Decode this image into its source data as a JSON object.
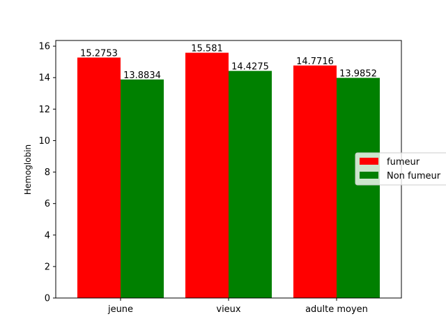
{
  "chart_data": {
    "type": "bar",
    "categories": [
      "jeune",
      "vieux",
      "adulte moyen"
    ],
    "series": [
      {
        "name": "fumeur",
        "color": "#ff0000",
        "values": [
          15.2753,
          15.581,
          14.7716
        ],
        "labels": [
          "15.2753",
          "15.581",
          "14.7716"
        ]
      },
      {
        "name": "Non fumeur",
        "color": "#008000",
        "values": [
          13.8834,
          14.4275,
          13.9852
        ],
        "labels": [
          "13.8834",
          "14.4275",
          "13.9852"
        ]
      }
    ],
    "ylabel": "Hemoglobin",
    "xlabel": "",
    "ylim": [
      0,
      16.36
    ],
    "yticks": [
      0,
      2,
      4,
      6,
      8,
      10,
      12,
      14,
      16
    ],
    "legend_position": "right",
    "grid": false
  }
}
